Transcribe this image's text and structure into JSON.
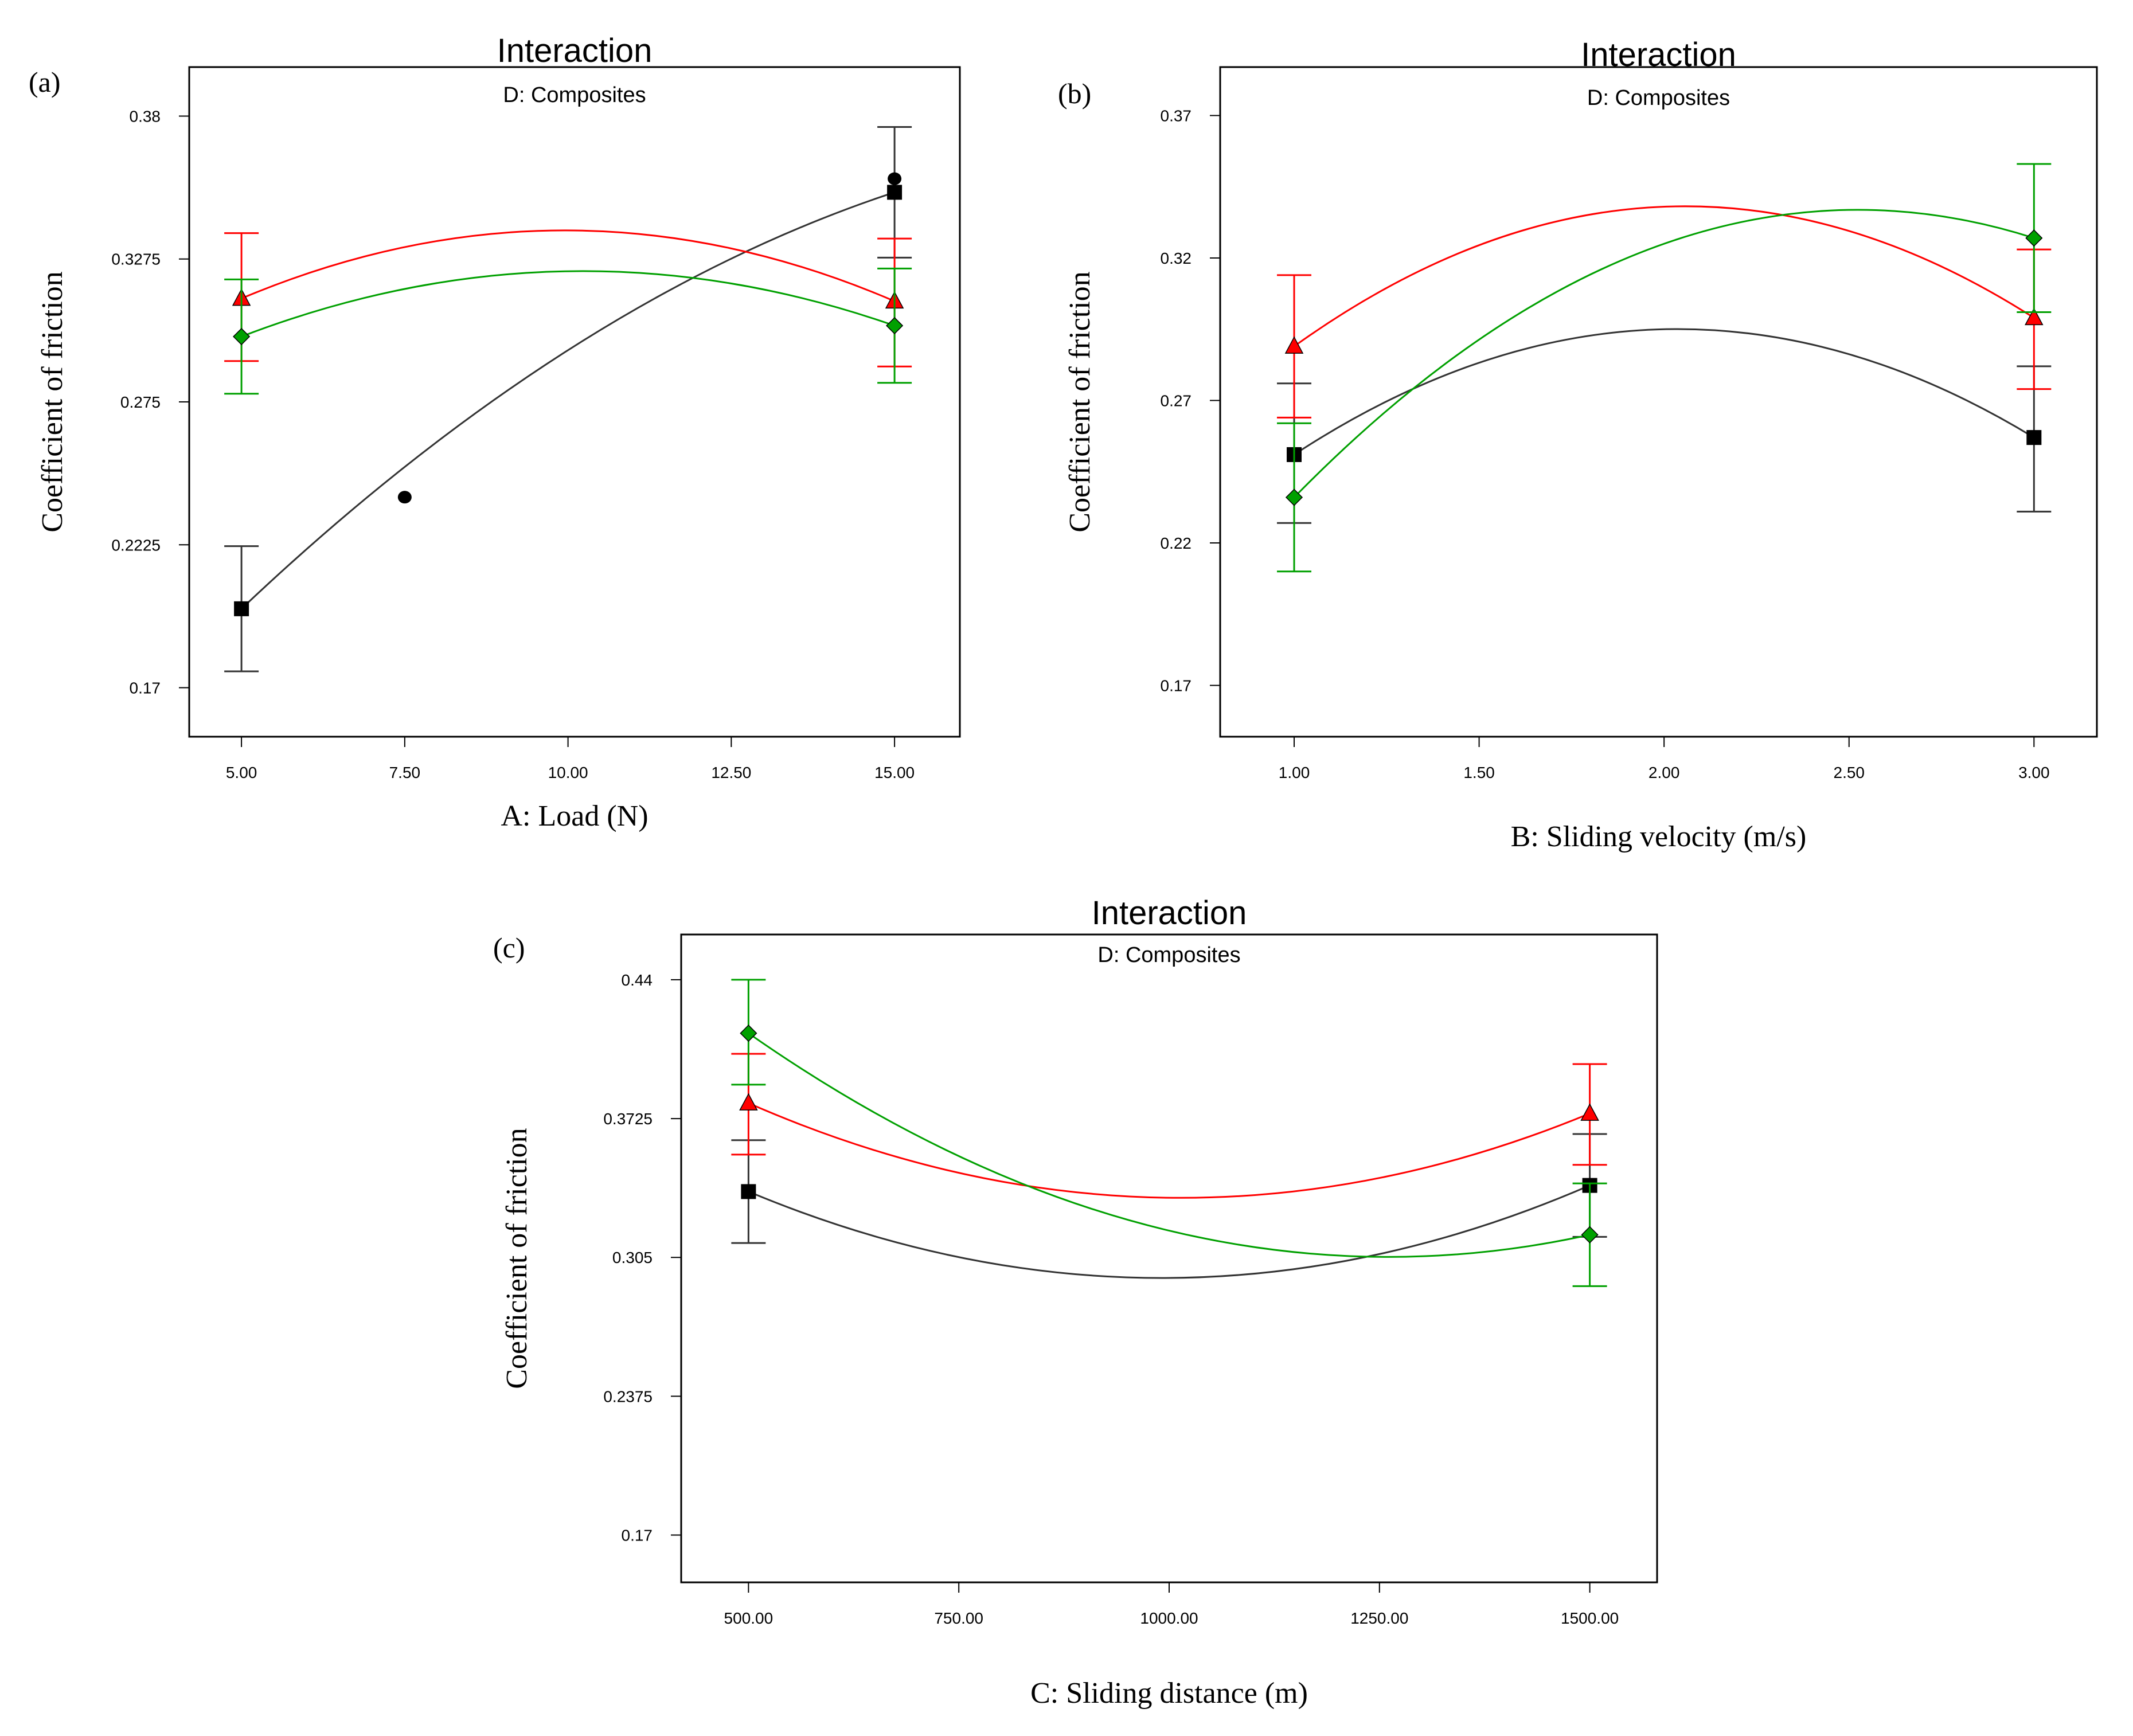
{
  "figure": {
    "panels": [
      "(a)",
      "(b)",
      "(c)"
    ]
  },
  "series_styles": [
    {
      "name": "black-square",
      "color": "#000000",
      "marker": "square"
    },
    {
      "name": "red-triangle",
      "color": "#ff0000",
      "marker": "triangle"
    },
    {
      "name": "green-diamond",
      "color": "#00a000",
      "marker": "diamond"
    }
  ],
  "chart_data": [
    {
      "type": "line",
      "panel_label": "(a)",
      "title": "Interaction",
      "subtitle": "D: Composites",
      "xlabel": "A: Load (N)",
      "ylabel": "Coefficient of friction",
      "xlim": [
        4.2,
        16.0
      ],
      "ylim": [
        0.152,
        0.398
      ],
      "xticks": [
        5.0,
        7.5,
        10.0,
        12.5,
        15.0
      ],
      "xtick_labels": [
        "5.00",
        "7.50",
        "10.00",
        "12.50",
        "15.00"
      ],
      "yticks": [
        0.17,
        0.2225,
        0.275,
        0.3275,
        0.38
      ],
      "ytick_labels": [
        "0.17",
        "0.2225",
        "0.275",
        "0.3275",
        "0.38"
      ],
      "series": [
        {
          "name": "black",
          "x": [
            5.0,
            15.0
          ],
          "values": [
            0.199,
            0.352
          ],
          "curve": [
            0.199,
            0.294,
            0.352
          ],
          "errors": [
            [
              0.176,
              0.222
            ],
            [
              0.328,
              0.376
            ]
          ]
        },
        {
          "name": "red",
          "x": [
            5.0,
            15.0
          ],
          "values": [
            0.313,
            0.312
          ],
          "curve": [
            0.313,
            0.338,
            0.312
          ],
          "errors": [
            [
              0.29,
              0.337
            ],
            [
              0.288,
              0.335
            ]
          ]
        },
        {
          "name": "green",
          "x": [
            5.0,
            15.0
          ],
          "values": [
            0.299,
            0.303
          ],
          "curve": [
            0.299,
            0.323,
            0.303
          ],
          "errors": [
            [
              0.278,
              0.32
            ],
            [
              0.282,
              0.324
            ]
          ]
        }
      ],
      "points": [
        {
          "x": 7.5,
          "y": 0.24
        },
        {
          "x": 15.0,
          "y": 0.357
        }
      ]
    },
    {
      "type": "line",
      "panel_label": "(b)",
      "title": "Interaction",
      "subtitle": "D: Composites",
      "xlabel": "B: Sliding velocity (m/s)",
      "ylabel": "Coefficient of friction",
      "xlim": [
        0.8,
        3.17
      ],
      "ylim": [
        0.152,
        0.387
      ],
      "xticks": [
        1.0,
        1.5,
        2.0,
        2.5,
        3.0
      ],
      "xtick_labels": [
        "1.00",
        "1.50",
        "2.00",
        "2.50",
        "3.00"
      ],
      "yticks": [
        0.17,
        0.22,
        0.27,
        0.32,
        0.37
      ],
      "ytick_labels": [
        "0.17",
        "0.22",
        "0.27",
        "0.32",
        "0.37"
      ],
      "series": [
        {
          "name": "black",
          "x": [
            1.0,
            3.0
          ],
          "values": [
            0.251,
            0.257
          ],
          "curve": [
            0.251,
            0.295,
            0.257
          ],
          "errors": [
            [
              0.227,
              0.276
            ],
            [
              0.231,
              0.282
            ]
          ]
        },
        {
          "name": "red",
          "x": [
            1.0,
            3.0
          ],
          "values": [
            0.289,
            0.299
          ],
          "curve": [
            0.289,
            0.338,
            0.299
          ],
          "errors": [
            [
              0.264,
              0.314
            ],
            [
              0.274,
              0.323
            ]
          ]
        },
        {
          "name": "green",
          "x": [
            1.0,
            3.0
          ],
          "values": [
            0.236,
            0.327
          ],
          "curve": [
            0.236,
            0.325,
            0.327
          ],
          "errors": [
            [
              0.21,
              0.262
            ],
            [
              0.301,
              0.353
            ]
          ]
        }
      ]
    },
    {
      "type": "line",
      "panel_label": "(c)",
      "title": "Interaction",
      "subtitle": "D: Composites",
      "xlabel": "C: Sliding distance (m)",
      "ylabel": "Coefficient of friction",
      "xlim": [
        420,
        1580
      ],
      "ylim": [
        0.147,
        0.462
      ],
      "xticks": [
        500,
        750,
        1000,
        1250,
        1500
      ],
      "xtick_labels": [
        "500.00",
        "750.00",
        "1000.00",
        "1250.00",
        "1500.00"
      ],
      "yticks": [
        0.17,
        0.2375,
        0.305,
        0.3725,
        0.44
      ],
      "ytick_labels": [
        "0.17",
        "0.2375",
        "0.305",
        "0.3725",
        "0.44"
      ],
      "series": [
        {
          "name": "black",
          "x": [
            500,
            1500
          ],
          "values": [
            0.337,
            0.34
          ],
          "curve": [
            0.337,
            0.295,
            0.34
          ],
          "errors": [
            [
              0.312,
              0.362
            ],
            [
              0.315,
              0.365
            ]
          ]
        },
        {
          "name": "red",
          "x": [
            500,
            1500
          ],
          "values": [
            0.38,
            0.375
          ],
          "curve": [
            0.38,
            0.334,
            0.375
          ],
          "errors": [
            [
              0.355,
              0.404
            ],
            [
              0.35,
              0.399
            ]
          ]
        },
        {
          "name": "green",
          "x": [
            500,
            1500
          ],
          "values": [
            0.414,
            0.316
          ],
          "curve": [
            0.414,
            0.318,
            0.316
          ],
          "errors": [
            [
              0.389,
              0.44
            ],
            [
              0.291,
              0.341
            ]
          ]
        }
      ]
    }
  ]
}
